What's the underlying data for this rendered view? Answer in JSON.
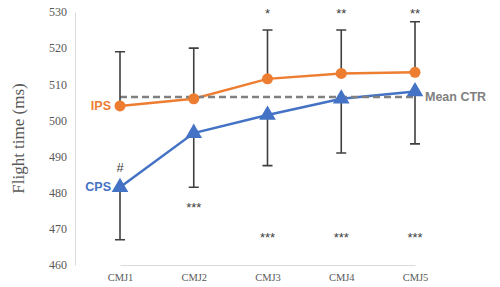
{
  "chart_data": {
    "type": "line",
    "y_label": "Flight time (ms)",
    "categories": [
      "CMJ1",
      "CMJ2",
      "CMJ3",
      "CMJ4",
      "CMJ5"
    ],
    "ylim": [
      460,
      530
    ],
    "yticks": [
      460,
      470,
      480,
      490,
      500,
      510,
      520,
      530
    ],
    "series": [
      {
        "name": "IPS",
        "color": "#ED7D31",
        "marker": "circle",
        "values": [
          504,
          506,
          511.5,
          513,
          513.3
        ],
        "errors_upper": [
          15,
          14,
          13.5,
          12,
          14
        ]
      },
      {
        "name": "CPS",
        "color": "#4472C4",
        "marker": "triangle",
        "values": [
          481.5,
          496.5,
          501.5,
          506,
          508
        ],
        "errors_lower": [
          14.5,
          15,
          14,
          15,
          14.5
        ]
      },
      {
        "name": "Mean CTR",
        "color": "#808080",
        "marker": "none",
        "line_style": "dashed",
        "values": [
          506.5,
          506.5,
          506.5,
          506.5,
          506.5
        ]
      }
    ],
    "annotations": [
      {
        "text": "#",
        "x": "CMJ1",
        "y": 487
      },
      {
        "text": "***",
        "x": "CMJ2",
        "y": 476
      },
      {
        "text": "***",
        "x": "CMJ3",
        "y": 467.5
      },
      {
        "text": "***",
        "x": "CMJ4",
        "y": 467.5
      },
      {
        "text": "***",
        "x": "CMJ5",
        "y": 467.5
      },
      {
        "text": "*",
        "x": "CMJ3",
        "y": 529.5
      },
      {
        "text": "**",
        "x": "CMJ4",
        "y": 529.5
      },
      {
        "text": "**",
        "x": "CMJ5",
        "y": 529.5
      }
    ]
  }
}
